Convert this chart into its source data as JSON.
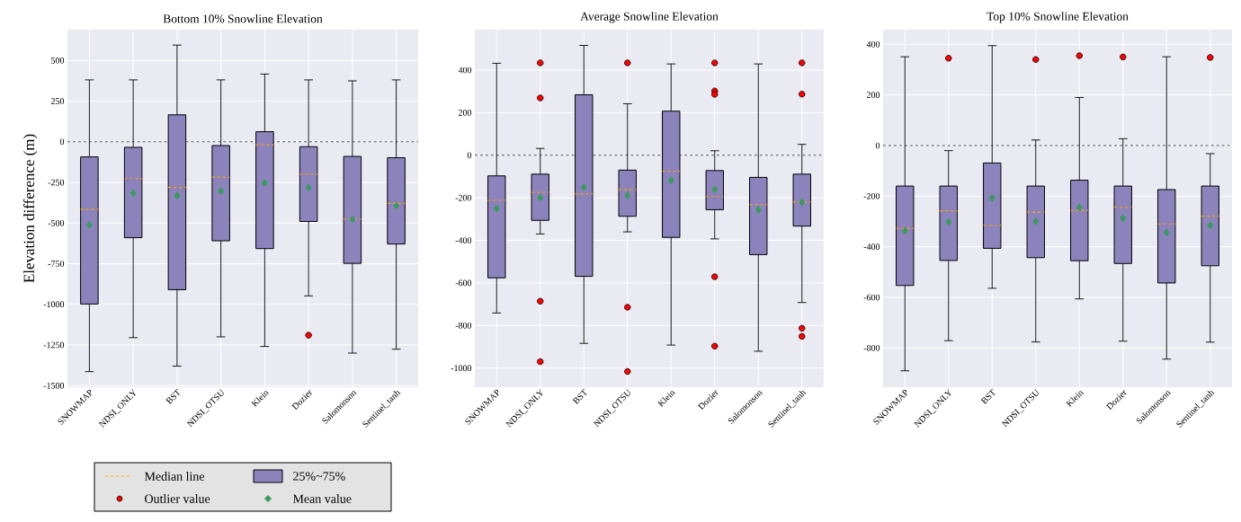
{
  "chart_data": [
    {
      "type": "box",
      "title": "Bottom 10% Snowline Elevation",
      "ylabel": "Elevation difference (m)",
      "categories": [
        "SNOWMAP",
        "NDSI_ONLY",
        "BST",
        "NDSI_OTSU",
        "Klein",
        "Dozier",
        "Salomonson",
        "Sentinel_tanh"
      ],
      "ylim": [
        -1510,
        690
      ],
      "yticks": [
        -1500,
        -1250,
        -1000,
        -750,
        -500,
        -250,
        0,
        250,
        500
      ],
      "grid": true,
      "legend": "bottom",
      "annotations": [
        "Median line"
      ],
      "ref_lines": [
        {
          "axis": "y",
          "value": 0,
          "line_style": "dashed"
        }
      ],
      "series": [
        {
          "type": "box",
          "name": "25%~75%",
          "color": "#8c82bc",
          "boxes": [
            {
              "low": -1414,
              "q1": -998,
              "median": -415,
              "q3": -93,
              "high": 381
            },
            {
              "low": -1205,
              "q1": -590,
              "median": -226,
              "q3": -34,
              "high": 381
            },
            {
              "low": -1380,
              "q1": -910,
              "median": -281,
              "q3": 166,
              "high": 595
            },
            {
              "low": -1200,
              "q1": -609,
              "median": -217,
              "q3": -23,
              "high": 381
            },
            {
              "low": -1259,
              "q1": -657,
              "median": -18,
              "q3": 62,
              "high": 417
            },
            {
              "low": -948,
              "q1": -490,
              "median": -199,
              "q3": -30,
              "high": 381
            },
            {
              "low": -1300,
              "q1": -748,
              "median": -475,
              "q3": -90,
              "high": 375
            },
            {
              "low": -1276,
              "q1": -629,
              "median": -379,
              "q3": -98,
              "high": 381
            }
          ]
        },
        {
          "type": "scatter",
          "name": "Outlier value",
          "color": "#ff0000",
          "marker": "circle",
          "x": [
            "Dozier"
          ],
          "values": [
            -1190
          ]
        },
        {
          "type": "scatter",
          "name": "Mean value",
          "color": "#3a9a5f",
          "marker": "diamond",
          "values": [
            -511,
            -316,
            -331,
            -304,
            -253,
            -283,
            -477,
            -394
          ]
        }
      ]
    },
    {
      "type": "box",
      "title": "Average Snowline Elevation",
      "categories": [
        "SNOWMAP",
        "NDSI_ONLY",
        "BST",
        "NDSI_OTSU",
        "Klein",
        "Dozier",
        "Salomonson",
        "Sentinel_tanh"
      ],
      "ylim": [
        -1090,
        590
      ],
      "yticks": [
        -1000,
        -800,
        -600,
        -400,
        -200,
        0,
        200,
        400
      ],
      "grid": true,
      "ref_lines": [
        {
          "axis": "y",
          "value": 0,
          "line_style": "dashed"
        }
      ],
      "series": [
        {
          "type": "box",
          "color": "#8c82bc",
          "boxes": [
            {
              "low": -741,
              "q1": -576,
              "median": -212,
              "q3": -97,
              "high": 432
            },
            {
              "low": -370,
              "q1": -306,
              "median": -174,
              "q3": -89,
              "high": 32
            },
            {
              "low": -884,
              "q1": -569,
              "median": -182,
              "q3": 284,
              "high": 516
            },
            {
              "low": -360,
              "q1": -287,
              "median": -162,
              "q3": -70,
              "high": 242
            },
            {
              "low": -892,
              "q1": -386,
              "median": -75,
              "q3": 207,
              "high": 429
            },
            {
              "low": -393,
              "q1": -256,
              "median": -194,
              "q3": -72,
              "high": 21
            },
            {
              "low": -921,
              "q1": -467,
              "median": -232,
              "q3": -104,
              "high": 429
            },
            {
              "low": -692,
              "q1": -333,
              "median": -220,
              "q3": -89,
              "high": 51
            }
          ]
        },
        {
          "type": "scatter",
          "color": "#ff0000",
          "marker": "circle",
          "x": [
            "NDSI_ONLY",
            "NDSI_ONLY",
            "NDSI_ONLY",
            "NDSI_ONLY",
            "NDSI_OTSU",
            "NDSI_OTSU",
            "NDSI_OTSU",
            "Dozier",
            "Dozier",
            "Dozier",
            "Dozier",
            "Dozier",
            "Sentinel_tanh",
            "Sentinel_tanh",
            "Sentinel_tanh",
            "Sentinel_tanh"
          ],
          "values": [
            434,
            269,
            -686,
            -970,
            434,
            -714,
            -1016,
            434,
            302,
            286,
            -571,
            -897,
            434,
            287,
            -813,
            -851
          ]
        },
        {
          "type": "scatter",
          "color": "#3a9a5f",
          "marker": "diamond",
          "values": [
            -250,
            -200,
            -151,
            -189,
            -118,
            -161,
            -256,
            -221
          ]
        }
      ]
    },
    {
      "type": "box",
      "title": "Top 10% Snowline Elevation",
      "categories": [
        "SNOWMAP",
        "NDSI_ONLY",
        "BST",
        "NDSI_OTSU",
        "Klein",
        "Dozier",
        "Salomonson",
        "Sentinel_tanh"
      ],
      "ylim": [
        -955,
        458
      ],
      "yticks": [
        -800,
        -600,
        -400,
        -200,
        0,
        200,
        400
      ],
      "grid": true,
      "ref_lines": [
        {
          "axis": "y",
          "value": 0,
          "line_style": "dashed"
        }
      ],
      "series": [
        {
          "type": "box",
          "color": "#8c82bc",
          "boxes": [
            {
              "low": -890,
              "q1": -553,
              "median": -327,
              "q3": -160,
              "high": 351
            },
            {
              "low": -771,
              "q1": -454,
              "median": -258,
              "q3": -160,
              "high": -20
            },
            {
              "low": -564,
              "q1": -406,
              "median": -315,
              "q3": -69,
              "high": 395
            },
            {
              "low": -776,
              "q1": -443,
              "median": -263,
              "q3": -160,
              "high": 22
            },
            {
              "low": -606,
              "q1": -455,
              "median": -256,
              "q3": -137,
              "high": 190
            },
            {
              "low": -773,
              "q1": -466,
              "median": -244,
              "q3": -160,
              "high": 27
            },
            {
              "low": -844,
              "q1": -543,
              "median": -310,
              "q3": -174,
              "high": 351
            },
            {
              "low": -777,
              "q1": -475,
              "median": -279,
              "q3": -160,
              "high": -32
            }
          ]
        },
        {
          "type": "scatter",
          "color": "#ff0000",
          "marker": "circle",
          "x": [
            "NDSI_ONLY",
            "NDSI_OTSU",
            "Klein",
            "Dozier",
            "Sentinel_tanh"
          ],
          "values": [
            345,
            340,
            355,
            350,
            348
          ]
        },
        {
          "type": "scatter",
          "color": "#3a9a5f",
          "marker": "diamond",
          "values": [
            -337,
            -302,
            -207,
            -300,
            -245,
            -287,
            -344,
            -315
          ]
        }
      ]
    }
  ]
}
